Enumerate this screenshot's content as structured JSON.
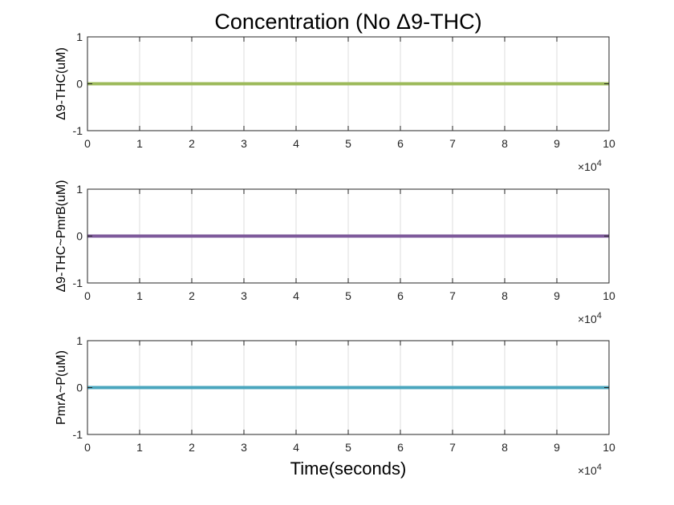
{
  "chart_data": [
    {
      "type": "line",
      "title": "Concentration (No Δ9-THC)",
      "ylabel": "Δ9-THC(uM)",
      "xlabel": "",
      "x_exponent_label": "×10",
      "x_exponent_power": "4",
      "xlim": [
        0,
        10
      ],
      "ylim": [
        -1,
        1
      ],
      "x_ticks": [
        "0",
        "1",
        "2",
        "3",
        "4",
        "5",
        "6",
        "7",
        "8",
        "9",
        "10"
      ],
      "y_ticks": [
        "-1",
        "0",
        "1"
      ],
      "grid": true,
      "series": [
        {
          "x": [
            0,
            10
          ],
          "y": [
            0,
            0
          ],
          "color": "#9cba5a"
        }
      ]
    },
    {
      "type": "line",
      "title": "",
      "ylabel": "Δ9-THC~PmrB(uM)",
      "xlabel": "",
      "x_exponent_label": "×10",
      "x_exponent_power": "4",
      "xlim": [
        0,
        10
      ],
      "ylim": [
        -1,
        1
      ],
      "x_ticks": [
        "0",
        "1",
        "2",
        "3",
        "4",
        "5",
        "6",
        "7",
        "8",
        "9",
        "10"
      ],
      "y_ticks": [
        "-1",
        "0",
        "1"
      ],
      "grid": true,
      "series": [
        {
          "x": [
            0,
            10
          ],
          "y": [
            0,
            0
          ],
          "color": "#7e5a9b"
        }
      ]
    },
    {
      "type": "line",
      "title": "",
      "ylabel": "PmrA~P(uM)",
      "xlabel": "Time(seconds)",
      "x_exponent_label": "×10",
      "x_exponent_power": "4",
      "xlim": [
        0,
        10
      ],
      "ylim": [
        -1,
        1
      ],
      "x_ticks": [
        "0",
        "1",
        "2",
        "3",
        "4",
        "5",
        "6",
        "7",
        "8",
        "9",
        "10"
      ],
      "y_ticks": [
        "-1",
        "0",
        "1"
      ],
      "grid": true,
      "series": [
        {
          "x": [
            0,
            10
          ],
          "y": [
            0,
            0
          ],
          "color": "#4aa6be"
        }
      ]
    }
  ]
}
